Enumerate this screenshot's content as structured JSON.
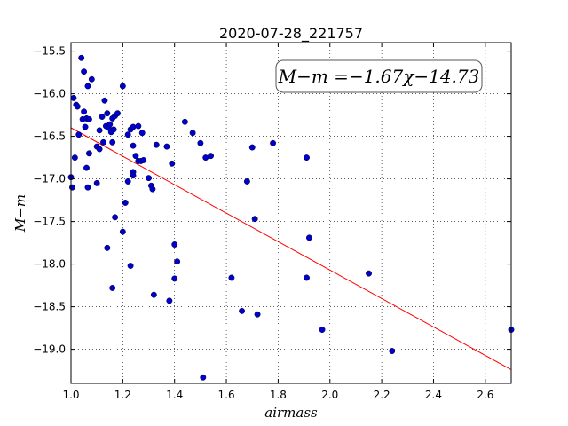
{
  "chart_data": {
    "type": "scatter",
    "title": "2020-07-28_221757",
    "xlabel": "airmass",
    "ylabel": "M−m",
    "xlim": [
      1.0,
      2.7
    ],
    "ylim": [
      -15.4,
      -19.4
    ],
    "y_inverted": true,
    "grid": true,
    "x_ticks": [
      "1.0",
      "1.2",
      "1.4",
      "1.6",
      "1.8",
      "2.0",
      "2.2",
      "2.4",
      "2.6"
    ],
    "y_ticks": [
      "−15.5",
      "−16.0",
      "−16.5",
      "−17.0",
      "−17.5",
      "−18.0",
      "−18.5",
      "−19.0"
    ],
    "annotation": "M−m =−1.67χ−14.73",
    "fit": {
      "slope": -1.67,
      "intercept": -14.73,
      "color": "#ff0000"
    },
    "point_color": "#0000cc",
    "points": [
      [
        1.0,
        -16.98
      ],
      [
        1.005,
        -17.1
      ],
      [
        1.01,
        -16.05
      ],
      [
        1.015,
        -16.75
      ],
      [
        1.02,
        -16.13
      ],
      [
        1.025,
        -16.15
      ],
      [
        1.03,
        -16.48
      ],
      [
        1.04,
        -15.58
      ],
      [
        1.045,
        -16.3
      ],
      [
        1.05,
        -15.74
      ],
      [
        1.05,
        -16.21
      ],
      [
        1.055,
        -16.39
      ],
      [
        1.06,
        -16.29
      ],
      [
        1.06,
        -16.87
      ],
      [
        1.065,
        -15.91
      ],
      [
        1.07,
        -16.3
      ],
      [
        1.065,
        -17.1
      ],
      [
        1.07,
        -16.7
      ],
      [
        1.08,
        -15.83
      ],
      [
        1.1,
        -16.62
      ],
      [
        1.1,
        -17.05
      ],
      [
        1.11,
        -16.65
      ],
      [
        1.11,
        -16.43
      ],
      [
        1.12,
        -16.27
      ],
      [
        1.125,
        -16.57
      ],
      [
        1.13,
        -16.08
      ],
      [
        1.135,
        -16.38
      ],
      [
        1.14,
        -16.23
      ],
      [
        1.14,
        -17.81
      ],
      [
        1.145,
        -16.4
      ],
      [
        1.15,
        -16.36
      ],
      [
        1.155,
        -16.45
      ],
      [
        1.16,
        -16.29
      ],
      [
        1.16,
        -16.57
      ],
      [
        1.165,
        -16.42
      ],
      [
        1.16,
        -18.28
      ],
      [
        1.17,
        -16.26
      ],
      [
        1.17,
        -17.45
      ],
      [
        1.18,
        -16.23
      ],
      [
        1.2,
        -15.91
      ],
      [
        1.2,
        -17.62
      ],
      [
        1.21,
        -17.28
      ],
      [
        1.22,
        -16.48
      ],
      [
        1.22,
        -17.03
      ],
      [
        1.23,
        -16.42
      ],
      [
        1.23,
        -18.02
      ],
      [
        1.24,
        -16.39
      ],
      [
        1.24,
        -16.61
      ],
      [
        1.24,
        -16.92
      ],
      [
        1.24,
        -16.96
      ],
      [
        1.25,
        -16.73
      ],
      [
        1.26,
        -16.38
      ],
      [
        1.26,
        -16.79
      ],
      [
        1.27,
        -16.79
      ],
      [
        1.275,
        -16.46
      ],
      [
        1.28,
        -16.78
      ],
      [
        1.3,
        -16.99
      ],
      [
        1.31,
        -17.08
      ],
      [
        1.315,
        -17.12
      ],
      [
        1.32,
        -18.36
      ],
      [
        1.33,
        -16.6
      ],
      [
        1.37,
        -16.62
      ],
      [
        1.38,
        -18.43
      ],
      [
        1.39,
        -16.82
      ],
      [
        1.4,
        -17.77
      ],
      [
        1.4,
        -18.17
      ],
      [
        1.41,
        -17.97
      ],
      [
        1.44,
        -16.33
      ],
      [
        1.47,
        -16.46
      ],
      [
        1.5,
        -16.58
      ],
      [
        1.51,
        -19.33
      ],
      [
        1.52,
        -16.75
      ],
      [
        1.54,
        -16.73
      ],
      [
        1.62,
        -18.16
      ],
      [
        1.66,
        -18.55
      ],
      [
        1.68,
        -17.03
      ],
      [
        1.7,
        -16.63
      ],
      [
        1.71,
        -17.47
      ],
      [
        1.72,
        -18.59
      ],
      [
        1.78,
        -16.58
      ],
      [
        1.91,
        -16.75
      ],
      [
        1.91,
        -18.16
      ],
      [
        1.92,
        -17.69
      ],
      [
        1.97,
        -18.77
      ],
      [
        2.15,
        -18.11
      ],
      [
        2.24,
        -19.02
      ],
      [
        2.7,
        -18.77
      ]
    ]
  }
}
